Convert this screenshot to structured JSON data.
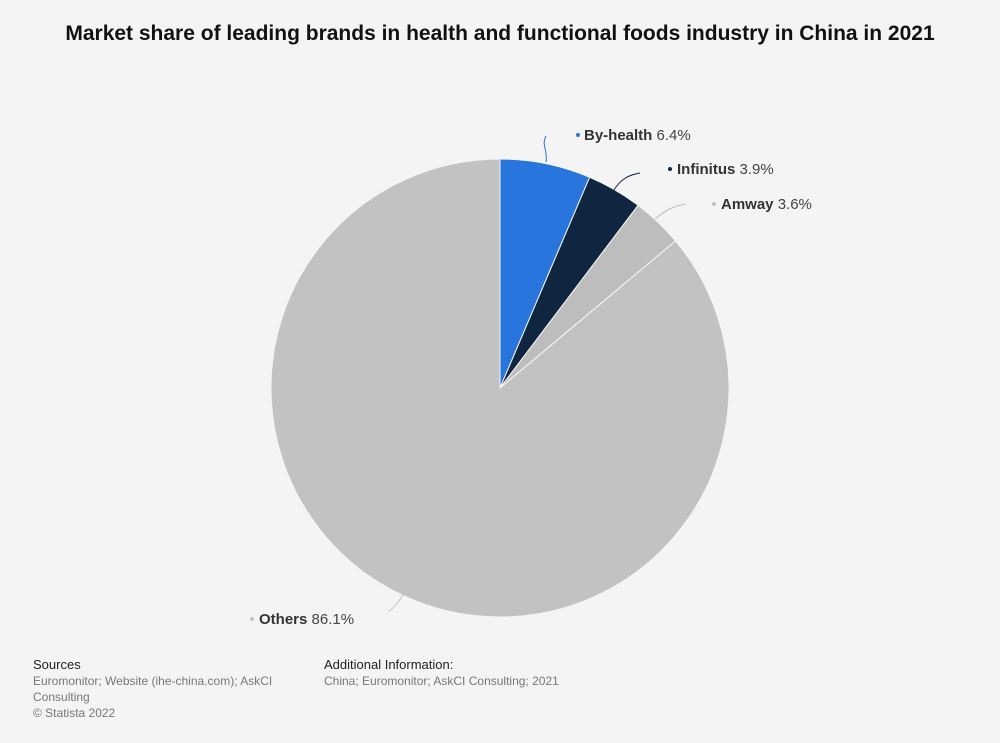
{
  "title": "Market share of leading brands in health and functional foods industry in China in 2021",
  "chart_data": {
    "type": "pie",
    "title": "Market share of leading brands in health and functional foods industry in China in 2021",
    "unit": "%",
    "slices": [
      {
        "label": "By-health",
        "value": 6.4,
        "value_label": "6.4%",
        "color": "#2876dd"
      },
      {
        "label": "Infinitus",
        "value": 3.9,
        "value_label": "3.9%",
        "color": "#0f2540"
      },
      {
        "label": "Amway",
        "value": 3.6,
        "value_label": "3.6%",
        "color": "#bdbdbd"
      },
      {
        "label": "Others",
        "value": 86.1,
        "value_label": "86.1%",
        "color": "#c2c2c2"
      }
    ]
  },
  "footer": {
    "sources_heading": "Sources",
    "sources_text": "Euromonitor; Website (ihe-china.com); AskCI Consulting",
    "copyright": "© Statista 2022",
    "additional_heading": "Additional Information:",
    "additional_text": "China; Euromonitor; AskCI Consulting; 2021"
  }
}
